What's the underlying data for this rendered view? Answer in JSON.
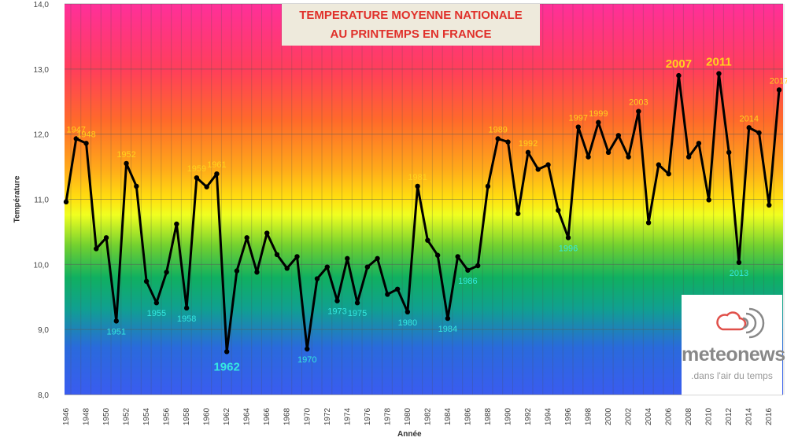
{
  "chart_data": {
    "type": "line",
    "title": [
      "TEMPERATURE MOYENNE NATIONALE",
      "AU PRINTEMPS EN FRANCE"
    ],
    "xlabel": "Année",
    "ylabel": "Température",
    "ylim": [
      8.0,
      14.0
    ],
    "yticks": [
      "8,0",
      "9,0",
      "10,0",
      "11,0",
      "12,0",
      "13,0",
      "14,0"
    ],
    "xlim": [
      1946,
      2017
    ],
    "xtick_step": 2,
    "grid": true,
    "background": "vertical rainbow gradient from blue (8) to pink (14)",
    "line_color": "#000000",
    "x": [
      1946,
      1947,
      1948,
      1949,
      1950,
      1951,
      1952,
      1953,
      1954,
      1955,
      1956,
      1957,
      1958,
      1959,
      1960,
      1961,
      1962,
      1963,
      1964,
      1965,
      1966,
      1967,
      1968,
      1969,
      1970,
      1971,
      1972,
      1973,
      1974,
      1975,
      1976,
      1977,
      1978,
      1979,
      1980,
      1981,
      1982,
      1983,
      1984,
      1985,
      1986,
      1987,
      1988,
      1989,
      1990,
      1991,
      1992,
      1993,
      1994,
      1995,
      1996,
      1997,
      1998,
      1999,
      2000,
      2001,
      2002,
      2003,
      2004,
      2005,
      2006,
      2007,
      2008,
      2009,
      2010,
      2011,
      2012,
      2013,
      2014,
      2015,
      2016,
      2017
    ],
    "values": [
      10.96,
      11.93,
      11.86,
      10.24,
      10.41,
      9.13,
      11.55,
      11.2,
      9.74,
      9.41,
      9.88,
      10.62,
      9.33,
      11.33,
      11.19,
      11.39,
      8.66,
      9.9,
      10.41,
      9.88,
      10.48,
      10.15,
      9.94,
      10.12,
      8.7,
      9.78,
      9.96,
      9.44,
      10.09,
      9.41,
      9.96,
      10.09,
      9.54,
      9.62,
      9.27,
      11.2,
      10.37,
      10.14,
      9.17,
      10.12,
      9.91,
      9.98,
      11.2,
      11.93,
      11.88,
      10.78,
      11.72,
      11.46,
      11.53,
      10.83,
      10.41,
      12.11,
      11.65,
      12.18,
      11.72,
      11.98,
      11.65,
      12.35,
      10.64,
      11.53,
      11.39,
      12.9,
      11.65,
      11.86,
      10.99,
      12.93,
      11.72,
      10.03,
      12.1,
      12.02,
      10.91,
      12.68
    ],
    "annotations_high": {
      "color": "#ffd21e",
      "years": [
        "1947",
        "1948",
        "1952",
        "1959",
        "1961",
        "1981",
        "1989",
        "1992",
        "1997",
        "1999",
        "2003",
        "2007",
        "2011",
        "2014",
        "2017"
      ]
    },
    "annotations_low": {
      "color": "#35e8e0",
      "years": [
        "1951",
        "1955",
        "1958",
        "1962",
        "1970",
        "1973",
        "1975",
        "1980",
        "1984",
        "1986",
        "1996",
        "2013"
      ]
    },
    "emphasized": [
      "1962",
      "2007",
      "2011"
    ]
  },
  "logo": {
    "name": "meteonews",
    "tagline": ".dans l'air du temps",
    "icon": "cloud-signal-icon",
    "accent": "#e0504a"
  }
}
